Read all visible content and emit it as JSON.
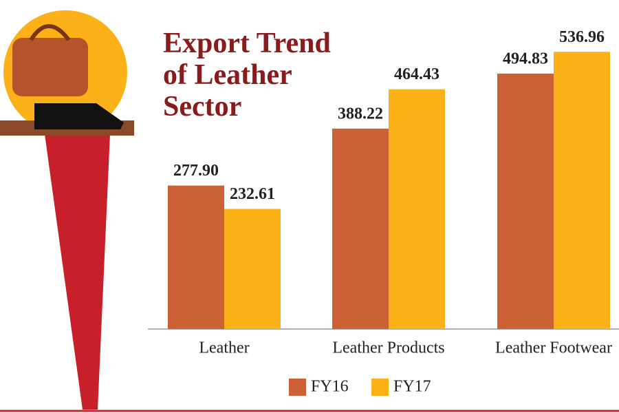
{
  "chart_data": {
    "type": "bar",
    "title": "Export Trend of Leather Sector",
    "categories": [
      "Leather",
      "Leather Products",
      "Leather Footwear"
    ],
    "series": [
      {
        "name": "FY16",
        "color": "#cc6135",
        "values": [
          277.9,
          388.22,
          494.83
        ],
        "value_labels": [
          "277.90",
          "388.22",
          "494.83"
        ]
      },
      {
        "name": "FY17",
        "color": "#fbb117",
        "values": [
          232.61,
          464.43,
          536.96
        ],
        "value_labels": [
          "232.61",
          "464.43",
          "536.96"
        ]
      }
    ],
    "legend": "bottom"
  }
}
